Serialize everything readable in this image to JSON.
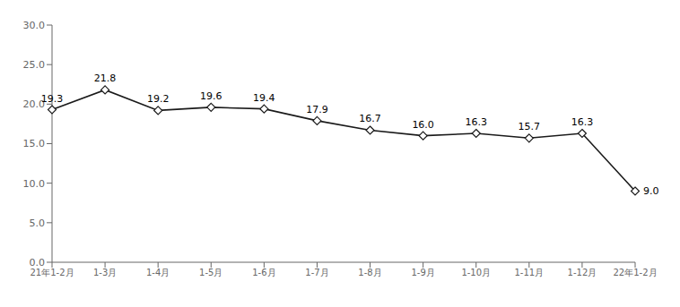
{
  "chart_data": {
    "type": "line",
    "categories": [
      "21年1-2月",
      "1-3月",
      "1-4月",
      "1-5月",
      "1-6月",
      "1-7月",
      "1-8月",
      "1-9月",
      "1-10月",
      "1-11月",
      "1-12月",
      "22年1-2月"
    ],
    "values": [
      19.3,
      21.8,
      19.2,
      19.6,
      19.4,
      17.9,
      16.7,
      16.0,
      16.3,
      15.7,
      16.3,
      9.0
    ],
    "value_labels": [
      "19.3",
      "21.8",
      "19.2",
      "19.6",
      "19.4",
      "17.9",
      "16.7",
      "16.0",
      "16.3",
      "15.7",
      "16.3",
      "9.0"
    ],
    "ylim": [
      0,
      30.0
    ],
    "yticks": [
      {
        "value": 0,
        "label": "0.0"
      },
      {
        "value": 5,
        "label": "5.0"
      },
      {
        "value": 10,
        "label": "10.0"
      },
      {
        "value": 15,
        "label": "15.0"
      },
      {
        "value": 20,
        "label": "20.0"
      },
      {
        "value": 25,
        "label": "25.0"
      },
      {
        "value": 30,
        "label": "30.0"
      }
    ],
    "color": "#1a1a1a",
    "marker": "diamond",
    "data_labels": true,
    "grid": false
  }
}
